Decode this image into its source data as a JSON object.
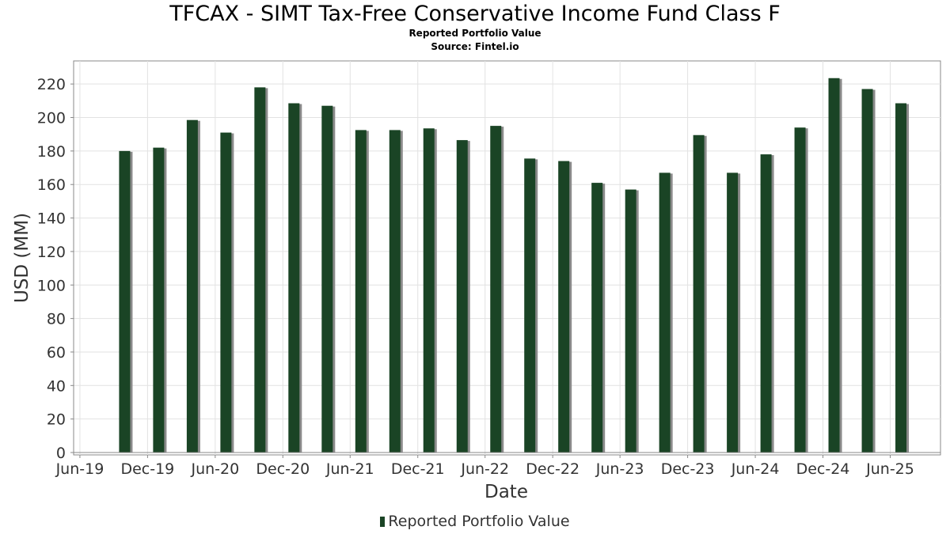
{
  "title": "TFCAX - SIMT Tax-Free Conservative Income Fund Class F",
  "subtitle": "Reported Portfolio Value",
  "source": "Source: Fintel.io",
  "colors": {
    "bar": "#1a4425",
    "bar_shadow": "#8a8a8a",
    "grid": "#e2e2e2",
    "axis": "#888888",
    "text": "#333333"
  },
  "chart_data": {
    "type": "bar",
    "title": "TFCAX - SIMT Tax-Free Conservative Income Fund Class F",
    "subtitle": "Reported Portfolio Value",
    "xlabel": "Date",
    "ylabel": "USD (MM)",
    "ylim": [
      0,
      230
    ],
    "yticks": [
      0,
      20,
      40,
      60,
      80,
      100,
      120,
      140,
      160,
      180,
      200,
      220
    ],
    "xlim": [
      "2019-05-15",
      "2025-10-15"
    ],
    "xticks": [
      {
        "label": "Jun-19",
        "date": "2019-06-01"
      },
      {
        "label": "Dec-19",
        "date": "2019-12-01"
      },
      {
        "label": "Jun-20",
        "date": "2020-06-01"
      },
      {
        "label": "Dec-20",
        "date": "2020-12-01"
      },
      {
        "label": "Jun-21",
        "date": "2021-06-01"
      },
      {
        "label": "Dec-21",
        "date": "2021-12-01"
      },
      {
        "label": "Jun-22",
        "date": "2022-06-01"
      },
      {
        "label": "Dec-22",
        "date": "2022-12-01"
      },
      {
        "label": "Jun-23",
        "date": "2023-06-01"
      },
      {
        "label": "Dec-23",
        "date": "2023-12-01"
      },
      {
        "label": "Jun-24",
        "date": "2024-06-01"
      },
      {
        "label": "Dec-24",
        "date": "2024-12-01"
      },
      {
        "label": "Jun-25",
        "date": "2025-06-01"
      }
    ],
    "grid": true,
    "legend": "bottom-center",
    "series": [
      {
        "name": "Reported Portfolio Value",
        "points": [
          {
            "date": "2019-09-30",
            "value": 180
          },
          {
            "date": "2019-12-31",
            "value": 182
          },
          {
            "date": "2020-03-31",
            "value": 198.5
          },
          {
            "date": "2020-06-30",
            "value": 191
          },
          {
            "date": "2020-09-30",
            "value": 218
          },
          {
            "date": "2020-12-31",
            "value": 208.5
          },
          {
            "date": "2021-03-31",
            "value": 207
          },
          {
            "date": "2021-06-30",
            "value": 192.5
          },
          {
            "date": "2021-09-30",
            "value": 192.5
          },
          {
            "date": "2021-12-31",
            "value": 193.5
          },
          {
            "date": "2022-03-31",
            "value": 186.5
          },
          {
            "date": "2022-06-30",
            "value": 195
          },
          {
            "date": "2022-09-30",
            "value": 175.5
          },
          {
            "date": "2022-12-31",
            "value": 174
          },
          {
            "date": "2023-03-31",
            "value": 161
          },
          {
            "date": "2023-06-30",
            "value": 157
          },
          {
            "date": "2023-09-30",
            "value": 167
          },
          {
            "date": "2023-12-31",
            "value": 189.5
          },
          {
            "date": "2024-03-31",
            "value": 167
          },
          {
            "date": "2024-06-30",
            "value": 178
          },
          {
            "date": "2024-09-30",
            "value": 194
          },
          {
            "date": "2024-12-31",
            "value": 223.5
          },
          {
            "date": "2025-03-31",
            "value": 217
          },
          {
            "date": "2025-06-30",
            "value": 208.5
          }
        ]
      }
    ]
  }
}
